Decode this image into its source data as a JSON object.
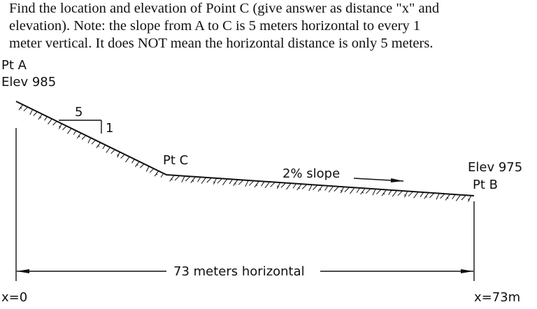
{
  "problem": {
    "line1": "Find the location and elevation of Point C (give answer as distance \"x\" and",
    "line2": "elevation). Note: the slope from A to C is 5 meters horizontal to every 1",
    "line3": "meter vertical. It does NOT mean the horizontal distance is only 5 meters."
  },
  "diagram": {
    "point_a_label": "Pt A",
    "point_a_elev": "Elev 985",
    "slope_run": "5",
    "slope_rise": "1",
    "point_c_label": "Pt C",
    "slope_label": "2% slope",
    "point_b_elev": "Elev 975",
    "point_b_label": "Pt B",
    "dimension_label": "73 meters horizontal",
    "x_start_label": "x=0",
    "x_end_label": "x=73m"
  }
}
